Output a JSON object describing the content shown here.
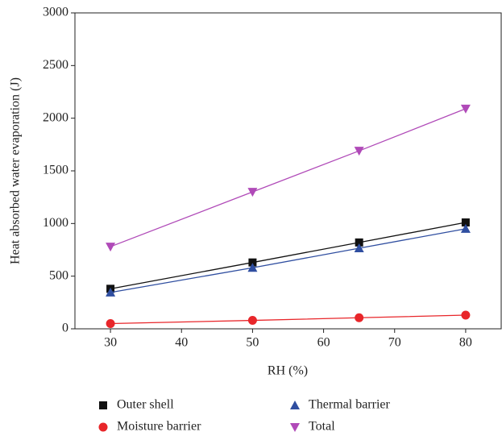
{
  "chart_data": {
    "type": "line",
    "x_label": "RH (%)",
    "y_label": "Heat absorbed water evaporation (J)",
    "x": [
      30,
      50,
      65,
      80
    ],
    "series": [
      {
        "name": "Outer shell",
        "color": "#111111",
        "marker": "square",
        "values": [
          380,
          630,
          820,
          1010
        ]
      },
      {
        "name": "Moisture barrier",
        "color": "#e8262a",
        "marker": "circle",
        "values": [
          50,
          80,
          105,
          130
        ]
      },
      {
        "name": "Thermal barrier",
        "color": "#2f4ea0",
        "marker": "triangle-up",
        "values": [
          345,
          580,
          765,
          950
        ]
      },
      {
        "name": "Total",
        "color": "#b04ab8",
        "marker": "triangle-down",
        "values": [
          780,
          1300,
          1690,
          2090
        ]
      }
    ],
    "xlim": [
      25,
      85
    ],
    "xticks": [
      30,
      40,
      50,
      60,
      70,
      80
    ],
    "ylim": [
      0,
      3000
    ],
    "yticks": [
      0,
      500,
      1000,
      1500,
      2000,
      2500,
      3000
    ]
  }
}
